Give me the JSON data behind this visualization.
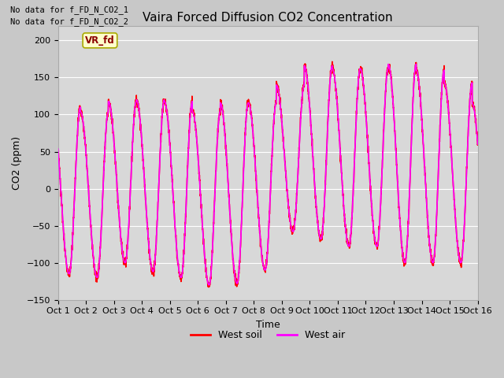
{
  "title": "Vaira Forced Diffusion CO2 Concentration",
  "xlabel": "Time",
  "ylabel": "CO2 (ppm)",
  "ylim": [
    -150,
    220
  ],
  "yticks": [
    -150,
    -100,
    -50,
    0,
    50,
    100,
    150,
    200
  ],
  "xlim": [
    0,
    15
  ],
  "xtick_labels": [
    "Oct 1",
    "Oct 2",
    "Oct 3",
    "Oct 4",
    "Oct 5",
    "Oct 6",
    "Oct 7",
    "Oct 8",
    "Oct 9",
    "Oct 10",
    "Oct 11",
    "Oct 12",
    "Oct 13",
    "Oct 14",
    "Oct 15",
    "Oct 16"
  ],
  "fig_facecolor": "#c8c8c8",
  "ax_facecolor": "#d8d8d8",
  "grid_color": "#ffffff",
  "title_fontsize": 11,
  "tick_fontsize": 8,
  "axis_label_fontsize": 9,
  "no_data_text1": "No data for f_FD_N_CO2_1",
  "no_data_text2": "No data for f_FD_N_CO2_2",
  "vr_fd_label": "VR_fd",
  "legend_entries": [
    "West soil",
    "West air"
  ],
  "soil_color": "#ff0000",
  "air_color": "#ff00ff",
  "line_width": 1.2
}
